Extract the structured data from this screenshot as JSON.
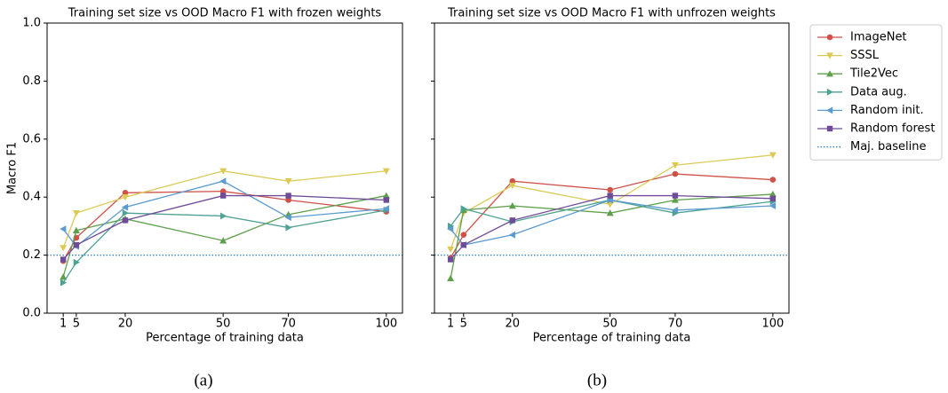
{
  "chart_data": [
    {
      "type": "line",
      "title": "Training set size vs OOD Macro F1 with frozen weights",
      "x_label": "Percentage of training data",
      "y_label": "Macro F1",
      "caption": "(a)",
      "x": [
        1,
        5,
        20,
        50,
        70,
        100
      ],
      "xlim": [
        -3.95,
        104.95
      ],
      "xticks": [
        1,
        5,
        20,
        50,
        70,
        100
      ],
      "ylim": [
        0,
        1
      ],
      "yticks": [
        {
          "value": 0,
          "label": "0.0"
        },
        {
          "value": 0.2,
          "label": "0.2"
        },
        {
          "value": 0.4,
          "label": "0.4"
        },
        {
          "value": 0.6,
          "label": "0.6"
        },
        {
          "value": 0.8,
          "label": "0.8"
        },
        {
          "value": 1,
          "label": "1.0"
        }
      ],
      "series": [
        {
          "color": "#cf5148",
          "marker": "circle",
          "values": [
            0.18,
            0.26,
            0.415,
            0.42,
            0.39,
            0.35
          ]
        },
        {
          "color": "#dcca55",
          "marker": "triangle-down",
          "values": [
            0.225,
            0.345,
            0.4,
            0.49,
            0.455,
            0.49
          ]
        },
        {
          "color": "#5e9f4c",
          "marker": "triangle-up",
          "values": [
            0.125,
            0.285,
            0.325,
            0.25,
            0.34,
            0.405
          ]
        },
        {
          "color": "#4ea293",
          "marker": "triangle-right",
          "values": [
            0.105,
            0.175,
            0.345,
            0.335,
            0.295,
            0.355
          ]
        },
        {
          "color": "#5b9bd0",
          "marker": "triangle-left",
          "values": [
            0.29,
            0.23,
            0.365,
            0.455,
            0.33,
            0.36
          ]
        },
        {
          "color": "#6f4c98",
          "marker": "square",
          "values": [
            0.185,
            0.235,
            0.32,
            0.405,
            0.405,
            0.39
          ]
        }
      ],
      "baseline": {
        "value": 0.2,
        "color": "#2f7fc1"
      }
    },
    {
      "type": "line",
      "title": "Training set size vs OOD Macro F1 with unfrozen weights",
      "x_label": "Percentage of training data",
      "caption": "(b)",
      "x": [
        1,
        5,
        20,
        50,
        70,
        100
      ],
      "xlim": [
        -3.95,
        104.95
      ],
      "xticks": [
        1,
        5,
        20,
        50,
        70,
        100
      ],
      "ylim": [
        0,
        1
      ],
      "yticks": [
        0,
        0.2,
        0.4,
        0.6,
        0.8,
        1
      ],
      "ytick_labels": false,
      "legend": "outside right",
      "series": [
        {
          "name": "ImageNet",
          "color": "#cf5148",
          "marker": "circle",
          "values": [
            0.19,
            0.27,
            0.455,
            0.425,
            0.48,
            0.46
          ]
        },
        {
          "name": "SSSL",
          "color": "#dcca55",
          "marker": "triangle-down",
          "values": [
            0.22,
            0.345,
            0.44,
            0.375,
            0.51,
            0.545
          ]
        },
        {
          "name": "Tile2Vec",
          "color": "#5e9f4c",
          "marker": "triangle-up",
          "values": [
            0.12,
            0.355,
            0.37,
            0.345,
            0.39,
            0.41
          ]
        },
        {
          "name": "Data aug.",
          "color": "#4ea293",
          "marker": "triangle-right",
          "values": [
            0.3,
            0.36,
            0.315,
            0.39,
            0.345,
            0.385
          ]
        },
        {
          "name": "Random init.",
          "color": "#5b9bd0",
          "marker": "triangle-left",
          "values": [
            0.29,
            0.235,
            0.27,
            0.39,
            0.355,
            0.37
          ]
        },
        {
          "name": "Random forest",
          "color": "#6f4c98",
          "marker": "square",
          "values": [
            0.185,
            0.235,
            0.32,
            0.405,
            0.405,
            0.395
          ]
        }
      ],
      "baseline": {
        "name": "Maj. baseline",
        "value": 0.2,
        "color": "#2f7fc1"
      }
    }
  ]
}
